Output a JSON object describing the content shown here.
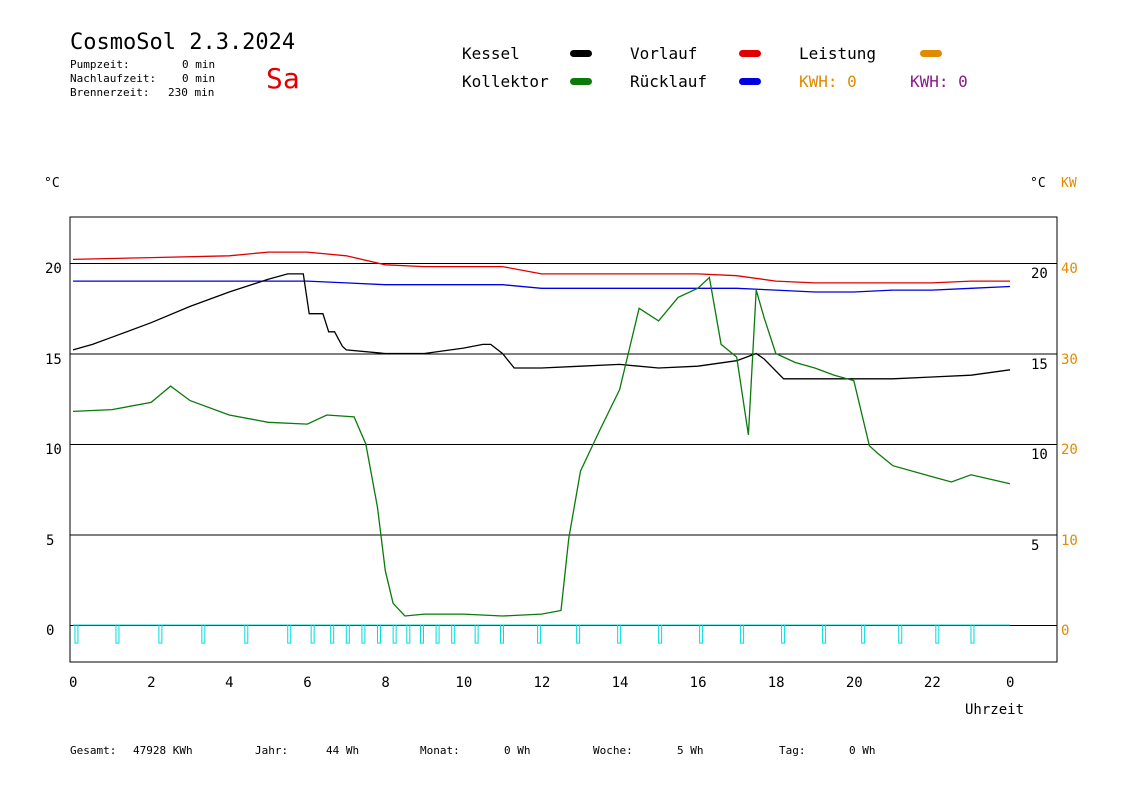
{
  "header": {
    "title": "CosmoSol 2.3.2024",
    "day": "Sa",
    "stats": [
      {
        "label": "Pumpzeit:",
        "value": "0 min"
      },
      {
        "label": "Nachlaufzeit:",
        "value": "0 min"
      },
      {
        "label": "Brennerzeit:",
        "value": "230 min"
      }
    ]
  },
  "legend": {
    "kessel": "Kessel",
    "kollektor": "Kollektor",
    "vorlauf": "Vorlauf",
    "ruecklauf": "Rücklauf",
    "leistung": "Leistung",
    "kwh1": "KWH: 0",
    "kwh2": "KWH: 0"
  },
  "footer": {
    "gesamt_label": "Gesamt:",
    "gesamt_value": "47928 KWh",
    "jahr_label": "Jahr:",
    "jahr_value": "44 Wh",
    "monat_label": "Monat:",
    "monat_value": "0 Wh",
    "woche_label": "Woche:",
    "woche_value": "5 Wh",
    "tag_label": "Tag:",
    "tag_value": "0 Wh"
  },
  "colors": {
    "kessel": "#000000",
    "kollektor": "#0a7a0a",
    "vorlauf": "#e00000",
    "ruecklauf": "#0000e0",
    "leistung": "#e08a00",
    "pump": "#00dcdc",
    "kwh2": "#8a1a8a"
  },
  "chart_data": {
    "type": "line",
    "left_unit": "°C",
    "right_unit1": "°C",
    "right_unit2": "KW",
    "xlabel": "Uhrzeit",
    "x_ticks": [
      "0",
      "2",
      "4",
      "6",
      "8",
      "10",
      "12",
      "14",
      "16",
      "18",
      "20",
      "22",
      "0"
    ],
    "left_ticks": [
      "0",
      "5",
      "10",
      "15",
      "20"
    ],
    "right_ticks1": [
      "5",
      "10",
      "15",
      "20"
    ],
    "right_ticks2": [
      "0",
      "10",
      "20",
      "30",
      "40"
    ],
    "xlim": [
      0,
      24
    ],
    "ylim_left": [
      -2,
      22.5
    ],
    "grid_y": [
      0,
      5,
      10,
      15,
      20
    ],
    "series": [
      {
        "name": "Vorlauf",
        "color": "#e00000",
        "x": [
          0,
          2,
          4,
          5,
          6,
          7,
          8,
          9,
          10,
          11,
          12,
          13,
          14,
          15,
          16,
          17,
          18,
          19,
          20,
          21,
          22,
          23,
          24
        ],
        "y": [
          20.2,
          20.3,
          20.4,
          20.6,
          20.6,
          20.4,
          19.9,
          19.8,
          19.8,
          19.8,
          19.4,
          19.4,
          19.4,
          19.4,
          19.4,
          19.3,
          19.0,
          18.9,
          18.9,
          18.9,
          18.9,
          19.0,
          19.0
        ]
      },
      {
        "name": "Rücklauf",
        "color": "#0000e0",
        "x": [
          0,
          2,
          4,
          6,
          7,
          8,
          9,
          10,
          11,
          12,
          13,
          14,
          15,
          16,
          17,
          18,
          19,
          20,
          21,
          22,
          23,
          24
        ],
        "y": [
          19.0,
          19.0,
          19.0,
          19.0,
          18.9,
          18.8,
          18.8,
          18.8,
          18.8,
          18.6,
          18.6,
          18.6,
          18.6,
          18.6,
          18.6,
          18.5,
          18.4,
          18.4,
          18.5,
          18.5,
          18.6,
          18.7
        ]
      },
      {
        "name": "Kessel",
        "color": "#000000",
        "x": [
          0,
          0.5,
          1,
          2,
          3,
          4,
          5,
          5.5,
          5.9,
          6.05,
          6.4,
          6.55,
          6.7,
          6.9,
          7,
          8,
          9,
          10,
          10.5,
          10.7,
          11,
          11.3,
          12,
          13,
          14,
          15,
          16,
          17,
          17.5,
          17.7,
          18.2,
          19,
          20,
          21,
          22,
          23,
          24
        ],
        "y": [
          15.2,
          15.5,
          15.9,
          16.7,
          17.6,
          18.4,
          19.1,
          19.4,
          19.4,
          17.2,
          17.2,
          16.2,
          16.2,
          15.4,
          15.2,
          15.0,
          15.0,
          15.3,
          15.5,
          15.5,
          15.0,
          14.2,
          14.2,
          14.3,
          14.4,
          14.2,
          14.3,
          14.6,
          15.0,
          14.7,
          13.6,
          13.6,
          13.6,
          13.6,
          13.7,
          13.8,
          14.1
        ]
      },
      {
        "name": "Kollektor",
        "color": "#0a7a0a",
        "x": [
          0,
          1,
          2,
          2.5,
          3,
          4,
          5,
          6,
          6.5,
          7.2,
          7.5,
          7.8,
          8,
          8.2,
          8.5,
          9,
          10,
          11,
          12,
          12.5,
          12.7,
          13,
          13.5,
          14,
          14.5,
          15,
          15.5,
          16,
          16.3,
          16.6,
          17,
          17.3,
          17.5,
          17.7,
          18,
          18.5,
          19,
          19.5,
          20,
          20.4,
          20.6,
          21,
          22,
          22.5,
          23,
          24
        ],
        "y": [
          11.8,
          11.9,
          12.3,
          13.2,
          12.4,
          11.6,
          11.2,
          11.1,
          11.6,
          11.5,
          10.0,
          6.5,
          3.0,
          1.2,
          0.5,
          0.6,
          0.6,
          0.5,
          0.6,
          0.8,
          4.8,
          8.5,
          10.8,
          13.0,
          17.5,
          16.8,
          18.1,
          18.6,
          19.2,
          15.5,
          14.8,
          10.5,
          18.5,
          17.0,
          15.0,
          14.5,
          14.2,
          13.8,
          13.5,
          9.9,
          9.5,
          8.8,
          8.2,
          7.9,
          8.3,
          7.8
        ]
      }
    ],
    "pump_pulses_x": [
      0.05,
      1.1,
      2.2,
      3.3,
      4.4,
      5.5,
      6.1,
      6.6,
      7.0,
      7.4,
      7.8,
      8.2,
      8.55,
      8.9,
      9.3,
      9.7,
      10.3,
      10.95,
      11.9,
      12.9,
      13.95,
      15.0,
      16.05,
      17.1,
      18.15,
      19.2,
      20.2,
      21.15,
      22.1,
      23.0
    ],
    "pump_level": 0,
    "pump_pulse_height": 1
  }
}
